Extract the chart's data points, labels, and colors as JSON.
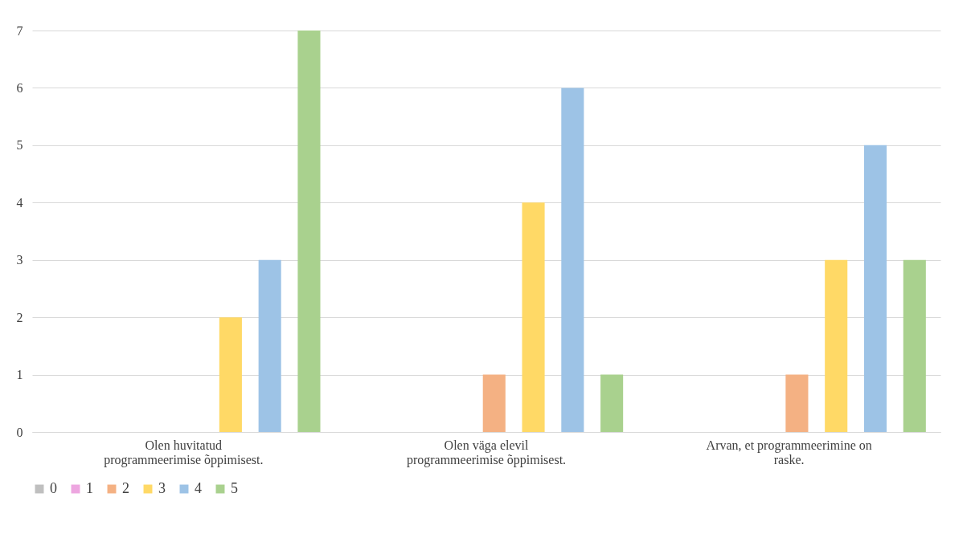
{
  "chart_data": {
    "type": "bar",
    "categories": [
      "Olen huvitatud programmeerimise õppimisest.",
      "Olen väga elevil programmeerimise õppimisest.",
      "Arvan, et programmeerimine on raske."
    ],
    "series": [
      {
        "name": "0",
        "color": "#bfbfbf",
        "values": [
          0,
          0,
          0
        ]
      },
      {
        "name": "1",
        "color": "#eda6e0",
        "values": [
          0,
          0,
          0
        ]
      },
      {
        "name": "2",
        "color": "#f4b183",
        "values": [
          0,
          1,
          1
        ]
      },
      {
        "name": "3",
        "color": "#ffd966",
        "values": [
          2,
          4,
          3
        ]
      },
      {
        "name": "4",
        "color": "#9dc3e6",
        "values": [
          3,
          6,
          5
        ]
      },
      {
        "name": "5",
        "color": "#a9d18e",
        "values": [
          7,
          1,
          3
        ]
      }
    ],
    "ylim": [
      0,
      7
    ],
    "yticks": [
      0,
      1,
      2,
      3,
      4,
      5,
      6,
      7
    ],
    "grid": "y",
    "legend": "bottom"
  }
}
